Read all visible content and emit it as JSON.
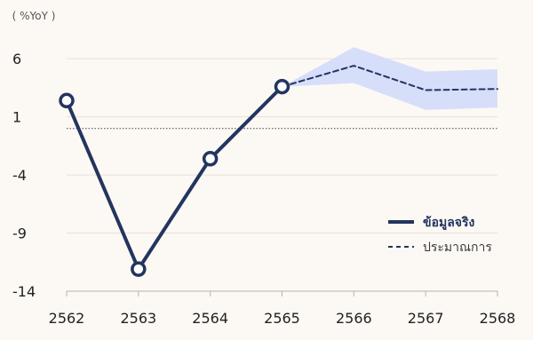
{
  "chart_data": {
    "type": "line",
    "ylabel": "( %YoY )",
    "x": [
      "2562",
      "2563",
      "2564",
      "2565",
      "2566",
      "2567",
      "2568"
    ],
    "ylim": [
      -14,
      8
    ],
    "yticks": [
      "6",
      "1",
      "-4",
      "-9",
      "-14"
    ],
    "ytick_values": [
      6,
      1,
      -4,
      -9,
      -14
    ],
    "reference_line": 0,
    "series": [
      {
        "name": "ข้อมูลจริง",
        "style": "solid",
        "markers": "open-circle",
        "color": "#23355f",
        "points": [
          {
            "x": "2562",
            "y": 2.4
          },
          {
            "x": "2563",
            "y": -12.1
          },
          {
            "x": "2564",
            "y": -2.6
          },
          {
            "x": "2565",
            "y": 3.6
          }
        ]
      },
      {
        "name": "ประมาณการ",
        "style": "dashed",
        "color": "#23355f",
        "points": [
          {
            "x": "2565",
            "y": 3.6
          },
          {
            "x": "2566",
            "y": 5.4
          },
          {
            "x": "2567",
            "y": 3.3
          },
          {
            "x": "2568",
            "y": 3.4
          }
        ]
      }
    ],
    "forecast_band": {
      "color": "#d7defa",
      "x": [
        "2565",
        "2566",
        "2567",
        "2568"
      ],
      "upper": [
        3.6,
        7.0,
        4.9,
        5.1
      ],
      "lower": [
        3.6,
        3.9,
        1.6,
        1.8
      ]
    },
    "legend": {
      "placement": "lower-right",
      "actual_color": "#23355f",
      "forecast_color": "#3a3a3a"
    }
  }
}
